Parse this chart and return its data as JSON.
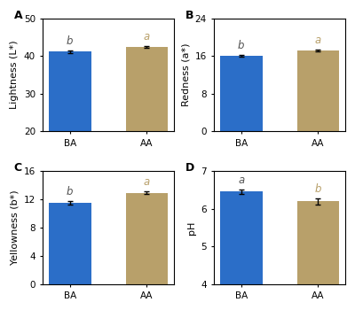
{
  "panels": [
    {
      "label": "A",
      "ylabel": "Lightness (L*)",
      "ylim": [
        20,
        50
      ],
      "yticks": [
        20,
        30,
        40,
        50
      ],
      "categories": [
        "BA",
        "AA"
      ],
      "values": [
        41.2,
        42.5
      ],
      "errors": [
        0.35,
        0.25
      ],
      "sig_labels": [
        "b",
        "a"
      ],
      "sig_colors": [
        "#555555",
        "#B8A06A"
      ],
      "bar_colors": [
        "#2B6EC8",
        "#B8A06A"
      ]
    },
    {
      "label": "B",
      "ylabel": "Redness (a*)",
      "ylim": [
        0,
        24
      ],
      "yticks": [
        0,
        8,
        16,
        24
      ],
      "categories": [
        "BA",
        "AA"
      ],
      "values": [
        16.1,
        17.2
      ],
      "errors": [
        0.25,
        0.2
      ],
      "sig_labels": [
        "b",
        "a"
      ],
      "sig_colors": [
        "#555555",
        "#B8A06A"
      ],
      "bar_colors": [
        "#2B6EC8",
        "#B8A06A"
      ]
    },
    {
      "label": "C",
      "ylabel": "Yellowness (b*)",
      "ylim": [
        0,
        16
      ],
      "yticks": [
        0,
        4,
        8,
        12,
        16
      ],
      "categories": [
        "BA",
        "AA"
      ],
      "values": [
        11.5,
        12.9
      ],
      "errors": [
        0.3,
        0.2
      ],
      "sig_labels": [
        "b",
        "a"
      ],
      "sig_colors": [
        "#555555",
        "#B8A06A"
      ],
      "bar_colors": [
        "#2B6EC8",
        "#B8A06A"
      ]
    },
    {
      "label": "D",
      "ylabel": "pH",
      "ylim": [
        4,
        7
      ],
      "yticks": [
        4,
        5,
        6,
        7
      ],
      "categories": [
        "BA",
        "AA"
      ],
      "values": [
        6.45,
        6.2
      ],
      "errors": [
        0.07,
        0.08
      ],
      "sig_labels": [
        "a",
        "b"
      ],
      "sig_colors": [
        "#555555",
        "#B8A06A"
      ],
      "bar_colors": [
        "#2B6EC8",
        "#B8A06A"
      ]
    }
  ],
  "background_color": "#FFFFFF",
  "bar_width": 0.55,
  "label_fontsize": 8,
  "tick_fontsize": 7.5,
  "sig_fontsize": 8.5,
  "panel_label_fontsize": 9
}
